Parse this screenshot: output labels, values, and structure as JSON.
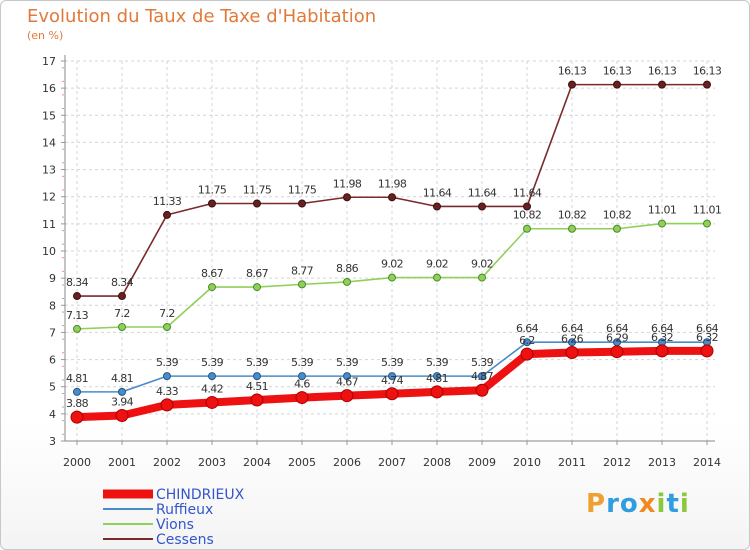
{
  "header": {
    "title": "Evolution du Taux de Taxe d'Habitation",
    "subtitle": "(en %)"
  },
  "logo": {
    "letters": [
      "P",
      "r",
      "o",
      "x",
      "i",
      "t",
      "i"
    ],
    "colors": [
      "#f0a030",
      "#2f9de0",
      "#2f9de0",
      "#f08a20",
      "#8cc83c",
      "#2f9de0",
      "#8cc83c"
    ]
  },
  "chart_data": {
    "type": "line",
    "x": [
      "2000",
      "2001",
      "2002",
      "2003",
      "2004",
      "2005",
      "2006",
      "2007",
      "2008",
      "2009",
      "2010",
      "2011",
      "2012",
      "2013",
      "2014"
    ],
    "ylim": [
      3,
      17
    ],
    "yticks": [
      3,
      4,
      5,
      6,
      7,
      8,
      9,
      10,
      11,
      12,
      13,
      14,
      15,
      16,
      17
    ],
    "grid": true,
    "legend_position": "bottom-left",
    "series": [
      {
        "name": "Cessens",
        "color": "#7a2a2a",
        "values": [
          8.34,
          8.34,
          11.33,
          11.75,
          11.75,
          11.75,
          11.98,
          11.98,
          11.64,
          11.64,
          11.64,
          16.13,
          16.13,
          16.13,
          16.13
        ],
        "labels": [
          "8.34",
          "8.34",
          "11.33",
          "11.75",
          "11.75",
          "11.75",
          "11.98",
          "11.98",
          "11.64",
          "11.64",
          "11.64",
          "16.13",
          "16.13",
          "16.13",
          "16.13"
        ]
      },
      {
        "name": "Vions",
        "color": "#8fd05a",
        "values": [
          7.13,
          7.2,
          7.2,
          8.67,
          8.67,
          8.77,
          8.86,
          9.02,
          9.02,
          9.02,
          10.82,
          10.82,
          10.82,
          11.01,
          11.01
        ],
        "labels": [
          "7.13",
          "7.2",
          "7.2",
          "8.67",
          "8.67",
          "8.77",
          "8.86",
          "9.02",
          "9.02",
          "9.02",
          "10.82",
          "10.82",
          "10.82",
          "11.01",
          "11.01"
        ]
      },
      {
        "name": "Ruffieux",
        "color": "#4a8cc8",
        "values": [
          4.81,
          4.81,
          5.39,
          5.39,
          5.39,
          5.39,
          5.39,
          5.39,
          5.39,
          5.39,
          6.64,
          6.64,
          6.64,
          6.64,
          6.64
        ],
        "labels": [
          "4.81",
          "4.81",
          "5.39",
          "5.39",
          "5.39",
          "5.39",
          "5.39",
          "5.39",
          "5.39",
          "5.39",
          "6.64",
          "6.64",
          "6.64",
          "6.64",
          "6.64"
        ]
      },
      {
        "name": "CHINDRIEUX",
        "color": "#ee1111",
        "values": [
          3.88,
          3.94,
          4.33,
          4.42,
          4.51,
          4.6,
          4.67,
          4.74,
          4.81,
          4.87,
          6.2,
          6.26,
          6.29,
          6.32,
          6.32
        ],
        "labels": [
          "3.88",
          "3.94",
          "4.33",
          "4.42",
          "4.51",
          "4.6",
          "4.67",
          "4.74",
          "4.81",
          "4.87",
          "6.2",
          "6.26",
          "6.29",
          "6.32",
          "6.32"
        ]
      }
    ],
    "legend_order": [
      "CHINDRIEUX",
      "Ruffieux",
      "Vions",
      "Cessens"
    ]
  }
}
